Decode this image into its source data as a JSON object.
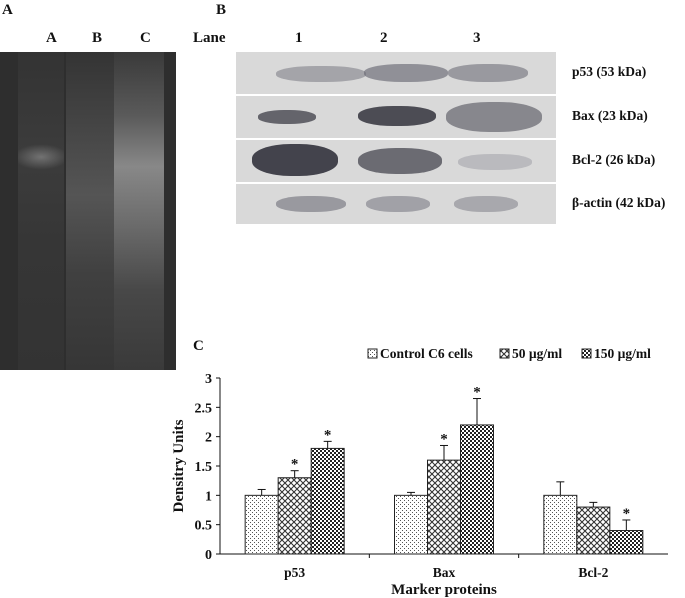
{
  "panels": {
    "a": {
      "letter": "A",
      "lanes": [
        "A",
        "B",
        "C"
      ]
    },
    "b": {
      "letter": "B",
      "lane_header": "Lane",
      "lanes": [
        "1",
        "2",
        "3"
      ],
      "blots": [
        {
          "label": "p53 (53 kDa)"
        },
        {
          "label": "Bax (23 kDa)"
        },
        {
          "label": "Bcl-2 (26 kDa)"
        },
        {
          "label": "β-actin (42 kDa)"
        }
      ]
    },
    "c": {
      "letter": "C"
    }
  },
  "chart_data": {
    "type": "bar",
    "categories": [
      "p53",
      "Bax",
      "Bcl-2"
    ],
    "series": [
      {
        "name": "Control C6 cells",
        "values": [
          1.0,
          1.0,
          1.0
        ],
        "errors": [
          0.1,
          0.05,
          0.23
        ],
        "significant": [
          false,
          false,
          false
        ]
      },
      {
        "name": "50 µg/ml",
        "values": [
          1.3,
          1.6,
          0.8
        ],
        "errors": [
          0.12,
          0.25,
          0.08
        ],
        "significant": [
          true,
          true,
          false
        ]
      },
      {
        "name": "150 µg/ml",
        "values": [
          1.8,
          2.2,
          0.4
        ],
        "errors": [
          0.12,
          0.45,
          0.18
        ],
        "significant": [
          true,
          true,
          true
        ]
      }
    ],
    "ylim": [
      0,
      3
    ],
    "yticks": [
      "0",
      "0.5",
      "1",
      "1.5",
      "2",
      "2.5",
      "3"
    ],
    "ylabel": "Densitry Units",
    "xlabel": "Marker proteins",
    "significance_marker": "*",
    "legend_position": "top",
    "grid": false
  }
}
